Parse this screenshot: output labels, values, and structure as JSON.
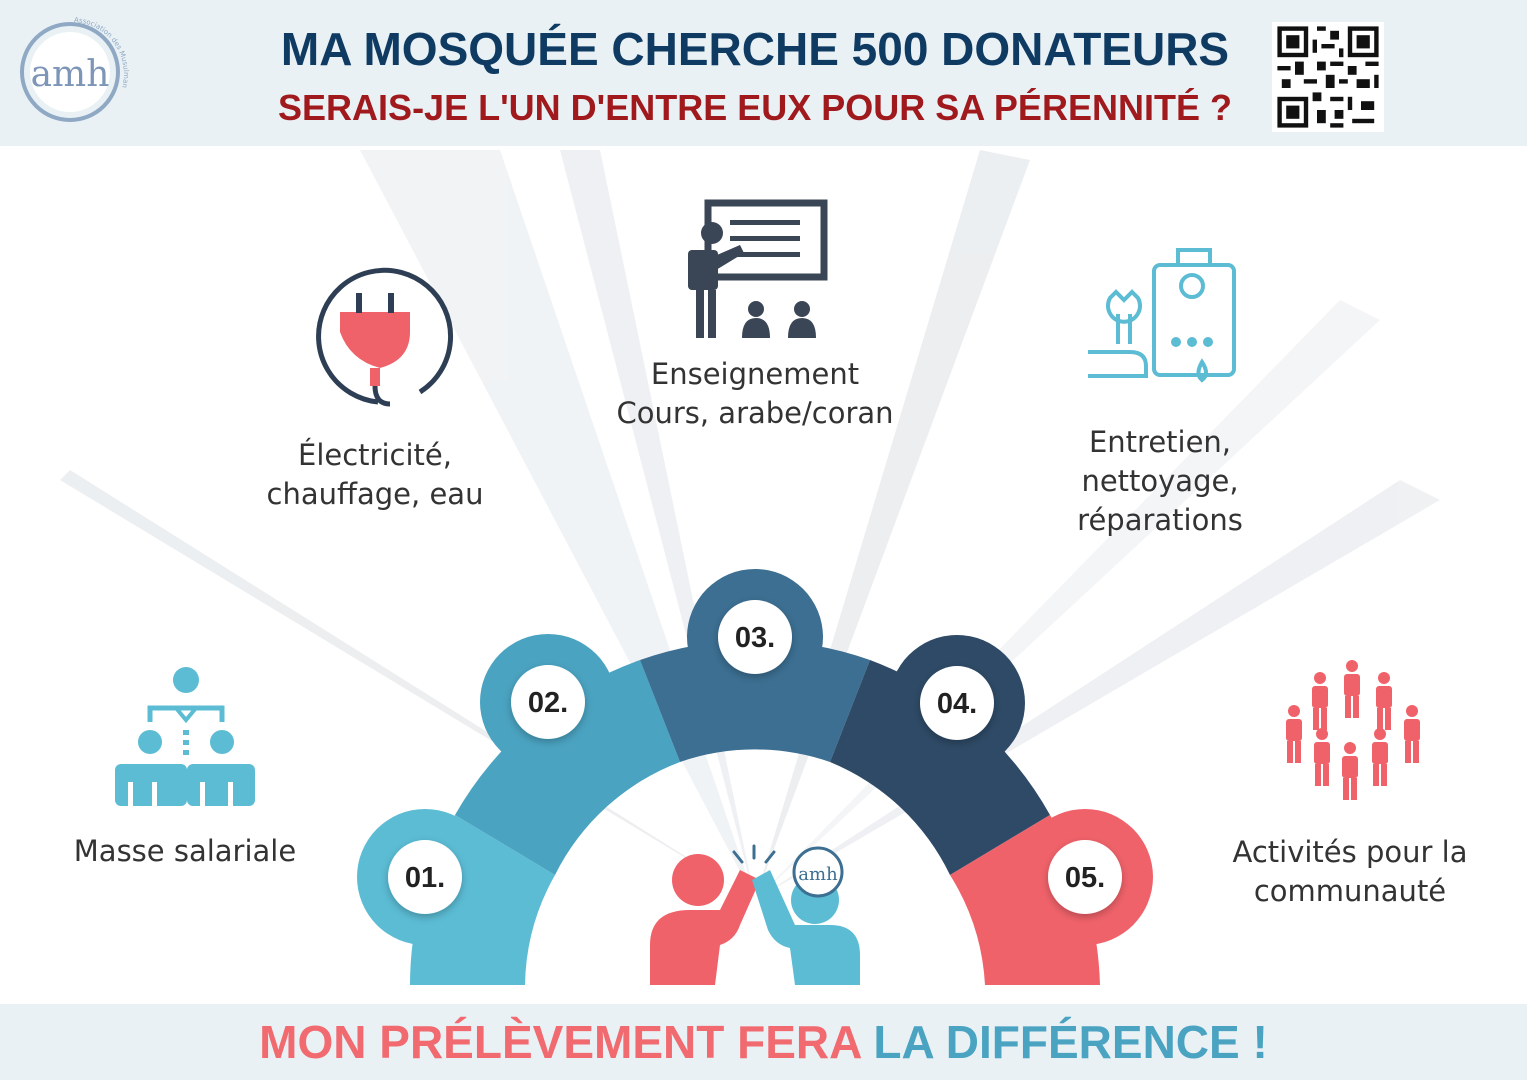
{
  "header": {
    "title": "MA MOSQUÉE CHERCHE 500 DONATEURS",
    "subtitle": "SERAIS-JE L'UN D'ENTRE EUX POUR SA PÉRENNITÉ ?",
    "logo_text": "amh",
    "logo_ring_text": "Association des Musulmans du Havre"
  },
  "steps": [
    {
      "number": "01.",
      "label_lines": [
        "Masse salariale"
      ],
      "icon": "hierarchy-icon",
      "color": "#5bbcd4"
    },
    {
      "number": "02.",
      "label_lines": [
        "Électricité,",
        "chauffage, eau"
      ],
      "icon": "plug-icon",
      "color": "#4aa3c1"
    },
    {
      "number": "03.",
      "label_lines": [
        "Enseignement",
        "Cours, arabe/coran"
      ],
      "icon": "teacher-icon",
      "color": "#3c6f92"
    },
    {
      "number": "04.",
      "label_lines": [
        "Entretien,",
        "nettoyage,",
        "réparations"
      ],
      "icon": "repair-icon",
      "color": "#2e4a66"
    },
    {
      "number": "05.",
      "label_lines": [
        "Activités pour la",
        "communauté"
      ],
      "icon": "community-icon",
      "color": "#f0626a"
    }
  ],
  "footer": {
    "part1": "MON PRÉLÈVEMENT ",
    "part2": "FERA ",
    "part3": "LA DIFFÉRENCE !"
  },
  "colors": {
    "navy": "#0f3b63",
    "red": "#a0191d",
    "coral": "#f06a6f",
    "teal": "#4aa3c1",
    "dark_slate": "#2e4a66"
  }
}
